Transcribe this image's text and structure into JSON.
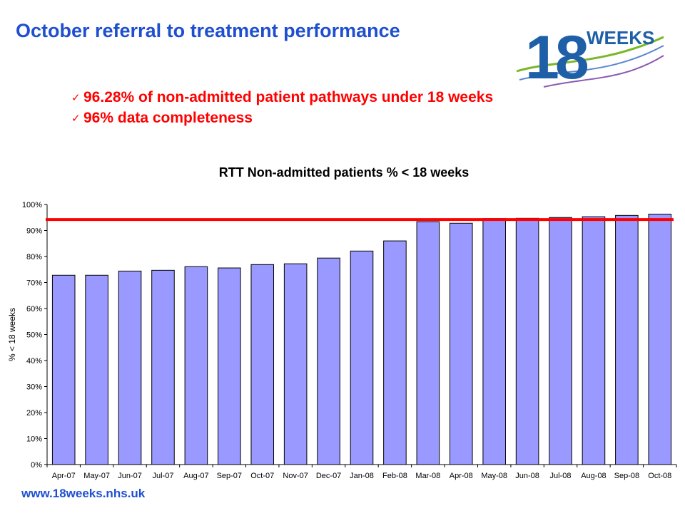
{
  "header": {
    "title": "October referral to treatment performance",
    "logo_text": "WEEKS",
    "logo_number": "18"
  },
  "bullets": [
    {
      "text": "96.28% of non-admitted patient pathways under 18 weeks",
      "icon": "check-icon"
    },
    {
      "text": "96% data completeness",
      "icon": "check-icon"
    }
  ],
  "footer": {
    "url": "www.18weeks.nhs.uk"
  },
  "colors": {
    "title": "#1f4fd1",
    "bullet": "#ff0000",
    "bar_fill": "#9999ff",
    "bar_stroke": "#000000",
    "target_line": "#ff0000",
    "logo_blue": "#1e5fa8",
    "logo_green": "#7ab828"
  },
  "chart_data": {
    "type": "bar",
    "title": "RTT Non-admitted patients % < 18 weeks",
    "xlabel": "",
    "ylabel": "% < 18 weeks",
    "ylim": [
      0,
      100
    ],
    "y_ticks": [
      "0%",
      "10%",
      "20%",
      "30%",
      "40%",
      "50%",
      "60%",
      "70%",
      "80%",
      "90%",
      "100%"
    ],
    "grid": false,
    "legend": "none",
    "categories": [
      "Apr-07",
      "May-07",
      "Jun-07",
      "Jul-07",
      "Aug-07",
      "Sep-07",
      "Oct-07",
      "Nov-07",
      "Dec-07",
      "Jan-08",
      "Feb-08",
      "Mar-08",
      "Apr-08",
      "May-08",
      "Jun-08",
      "Jul-08",
      "Aug-08",
      "Sep-08",
      "Oct-08"
    ],
    "values": [
      72.8,
      72.8,
      74.4,
      74.7,
      76.1,
      75.6,
      76.9,
      77.2,
      79.4,
      82.1,
      86.0,
      93.4,
      92.8,
      94.6,
      94.7,
      95.0,
      95.3,
      95.8,
      96.3
    ],
    "target_value": 94.2
  }
}
